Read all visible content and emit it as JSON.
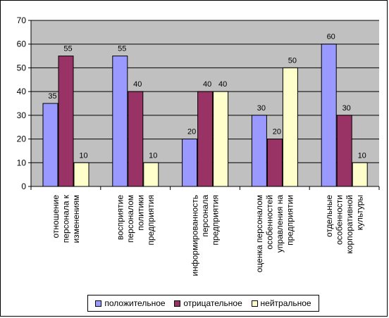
{
  "colors": {
    "plot_bg": "#c0c0c0",
    "series": [
      "#9999ff",
      "#993366",
      "#ffffcc"
    ]
  },
  "chart_data": {
    "type": "bar",
    "ylim": [
      0,
      70
    ],
    "yticks": [
      0,
      10,
      20,
      30,
      40,
      50,
      60,
      70
    ],
    "grid": true,
    "legend_position": "bottom",
    "categories": [
      [
        "отношение",
        "персонала к",
        "изменениям"
      ],
      [
        "восприятие",
        "персоналом",
        "политики",
        "предприятия"
      ],
      [
        "информированность",
        "персонала",
        "предприятия"
      ],
      [
        "оценка персоналом",
        "особенностей",
        "управления на",
        "предприятии"
      ],
      [
        "отдельные",
        "особенности",
        "корпоративной",
        "культуры"
      ]
    ],
    "series": [
      {
        "name": "положительное",
        "values": [
          35,
          55,
          20,
          30,
          60
        ]
      },
      {
        "name": "отрицательное",
        "values": [
          55,
          40,
          40,
          20,
          30
        ]
      },
      {
        "name": "нейтральное",
        "values": [
          10,
          10,
          40,
          50,
          10
        ]
      }
    ]
  }
}
